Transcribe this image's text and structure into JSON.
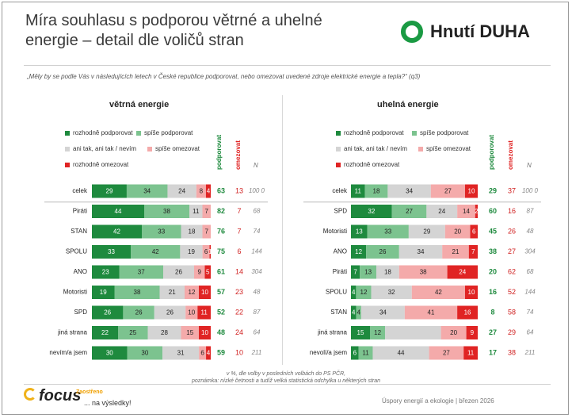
{
  "title": "Míra souhlasu s podporou větrné a uhelné energie – detail dle voličů stran",
  "logo": "Hnutí DUHA",
  "question": "„Měly by se podle Vás v následujících letech v České republice podporovat, nebo omezovat uvedené zdroje elektrické energie a tepla?“ (q3)",
  "legend": [
    "rozhodně podporovat",
    "spíše podporovat",
    "ani tak, ani tak / nevím",
    "spíše omezovat",
    "rozhodně omezovat"
  ],
  "colors": [
    "#1e8a3e",
    "#7cc38f",
    "#d4d4d4",
    "#f4aaaa",
    "#e02424"
  ],
  "col_heads": {
    "support": "podporovat",
    "restrict": "omezovat",
    "n": "N"
  },
  "chart_data": [
    {
      "type": "bar",
      "orientation": "horizontal-stacked",
      "title": "větrná energie",
      "series": [
        "rozhodně podporovat",
        "spíše podporovat",
        "ani tak, ani tak / nevím",
        "spíše omezovat",
        "rozhodně omezovat"
      ],
      "categories": [
        "celek",
        "Piráti",
        "STAN",
        "SPOLU",
        "ANO",
        "Motoristi",
        "SPD",
        "jiná strana",
        "nevím/a jsem"
      ],
      "values": [
        [
          29,
          34,
          24,
          8,
          4
        ],
        [
          44,
          38,
          11,
          7,
          0
        ],
        [
          42,
          33,
          18,
          7,
          0
        ],
        [
          33,
          42,
          19,
          6,
          1
        ],
        [
          23,
          37,
          26,
          9,
          5
        ],
        [
          19,
          38,
          21,
          12,
          10
        ],
        [
          26,
          26,
          26,
          10,
          11
        ],
        [
          22,
          25,
          28,
          15,
          10
        ],
        [
          30,
          30,
          31,
          6,
          4
        ]
      ],
      "labels": [
        [
          "29",
          "34",
          "24",
          "8",
          "4"
        ],
        [
          "44",
          "38",
          "11",
          "7",
          ""
        ],
        [
          "42",
          "33",
          "18",
          "7",
          ""
        ],
        [
          "33",
          "42",
          "19",
          "6",
          "1"
        ],
        [
          "23",
          "37",
          "26",
          "9",
          "5"
        ],
        [
          "19",
          "38",
          "21",
          "12",
          "10"
        ],
        [
          "26",
          "26",
          "26",
          "10",
          "11"
        ],
        [
          "22",
          "25",
          "28",
          "15",
          "10"
        ],
        [
          "30",
          "30",
          "31",
          "6",
          "4"
        ]
      ],
      "support": [
        "63",
        "82",
        "76",
        "75",
        "61",
        "57",
        "52",
        "48",
        "59"
      ],
      "restrict": [
        "13",
        "7",
        "7",
        "6",
        "14",
        "23",
        "22",
        "24",
        "10"
      ],
      "n": [
        "100 0",
        "68",
        "74",
        "144",
        "304",
        "48",
        "87",
        "64",
        "211"
      ]
    },
    {
      "type": "bar",
      "orientation": "horizontal-stacked",
      "title": "uhelná energie",
      "series": [
        "rozhodně podporovat",
        "spíše podporovat",
        "ani tak, ani tak / nevím",
        "spíše omezovat",
        "rozhodně omezovat"
      ],
      "categories": [
        "celek",
        "SPD",
        "Motoristi",
        "ANO",
        "Piráti",
        "SPOLU",
        "STAN",
        "jiná strana",
        "nevolí/a jsem"
      ],
      "values": [
        [
          11,
          18,
          34,
          27,
          10
        ],
        [
          32,
          27,
          24,
          14,
          2
        ],
        [
          13,
          33,
          29,
          20,
          6
        ],
        [
          12,
          26,
          34,
          21,
          7
        ],
        [
          7,
          13,
          18,
          38,
          24
        ],
        [
          4,
          12,
          32,
          42,
          10
        ],
        [
          4,
          4,
          34,
          41,
          16
        ],
        [
          15,
          12,
          44,
          20,
          9
        ],
        [
          6,
          11,
          44,
          27,
          11
        ]
      ],
      "labels": [
        [
          "11",
          "18",
          "34",
          "27",
          "10"
        ],
        [
          "32",
          "27",
          "24",
          "14",
          "2"
        ],
        [
          "13",
          "33",
          "29",
          "20",
          "6"
        ],
        [
          "12",
          "26",
          "34",
          "21",
          "7"
        ],
        [
          "7",
          "13",
          "18",
          "38",
          "24"
        ],
        [
          "4",
          "12",
          "32",
          "42",
          "10"
        ],
        [
          "4",
          "4",
          "34",
          "41",
          "16"
        ],
        [
          "15",
          "12",
          "",
          "20",
          "9"
        ],
        [
          "6",
          "11",
          "44",
          "27",
          "11"
        ]
      ],
      "support": [
        "29",
        "60",
        "45",
        "38",
        "20",
        "16",
        "8",
        "27",
        "17"
      ],
      "restrict": [
        "37",
        "16",
        "26",
        "27",
        "62",
        "52",
        "58",
        "29",
        "38"
      ],
      "n": [
        "100 0",
        "87",
        "48",
        "304",
        "68",
        "144",
        "74",
        "64",
        "211"
      ]
    }
  ],
  "footnote1": "v %, dle volby v posledních volbách do PS PČR,",
  "footnote2": "poznámka: nízké četnosti a tudíž velká statistická odchylka u některých stran",
  "focus_brand": "focus",
  "slogan1": "Zaostřeno",
  "slogan2": "... na výsledky!",
  "footer": "Úspory energií a ekologie  |  březen 2026"
}
